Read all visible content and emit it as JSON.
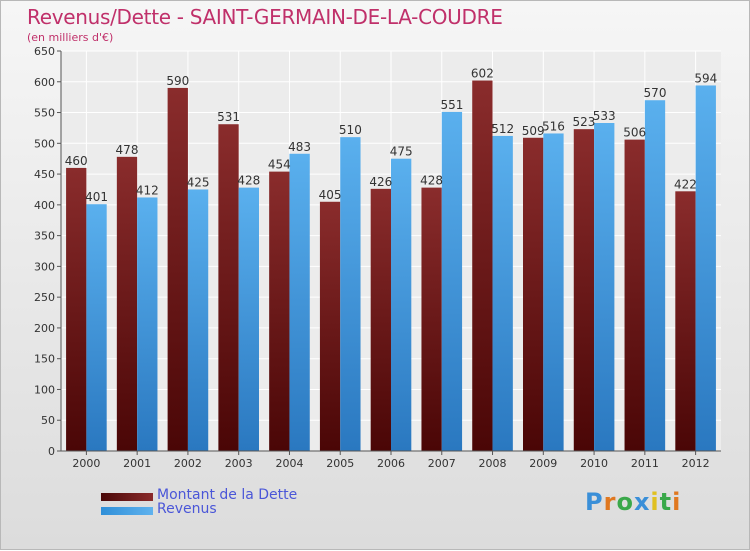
{
  "title": "Revenus/Dette - SAINT-GERMAIN-DE-LA-COUDRE",
  "subtitle": "(en milliers d'€)",
  "logo": {
    "letters": [
      "P",
      "r",
      "o",
      "x",
      "i",
      "t",
      "i"
    ],
    "colors": [
      "#3a8fd8",
      "#e07820",
      "#3aa84a",
      "#3a8fd8",
      "#e0c020",
      "#3aa84a",
      "#e07820"
    ]
  },
  "colors": {
    "debt": "#6a1414",
    "revenue": "#3a9ae0",
    "title": "#c0306a",
    "legend_text": "#4a56d8"
  },
  "chart_data": {
    "type": "bar",
    "categories": [
      "2000",
      "2001",
      "2002",
      "2003",
      "2004",
      "2005",
      "2006",
      "2007",
      "2008",
      "2009",
      "2010",
      "2011",
      "2012"
    ],
    "series": [
      {
        "name": "Montant de la Dette",
        "values": [
          460,
          478,
          590,
          531,
          454,
          405,
          426,
          428,
          602,
          509,
          523,
          506,
          422
        ]
      },
      {
        "name": "Revenus",
        "values": [
          401,
          412,
          425,
          428,
          483,
          510,
          475,
          551,
          512,
          516,
          533,
          570,
          594
        ]
      }
    ],
    "yticks": [
      0,
      50,
      100,
      150,
      200,
      250,
      300,
      350,
      400,
      450,
      500,
      550,
      600,
      650
    ],
    "ylim": [
      0,
      650
    ],
    "grid": true,
    "legend": "bottom-left"
  }
}
